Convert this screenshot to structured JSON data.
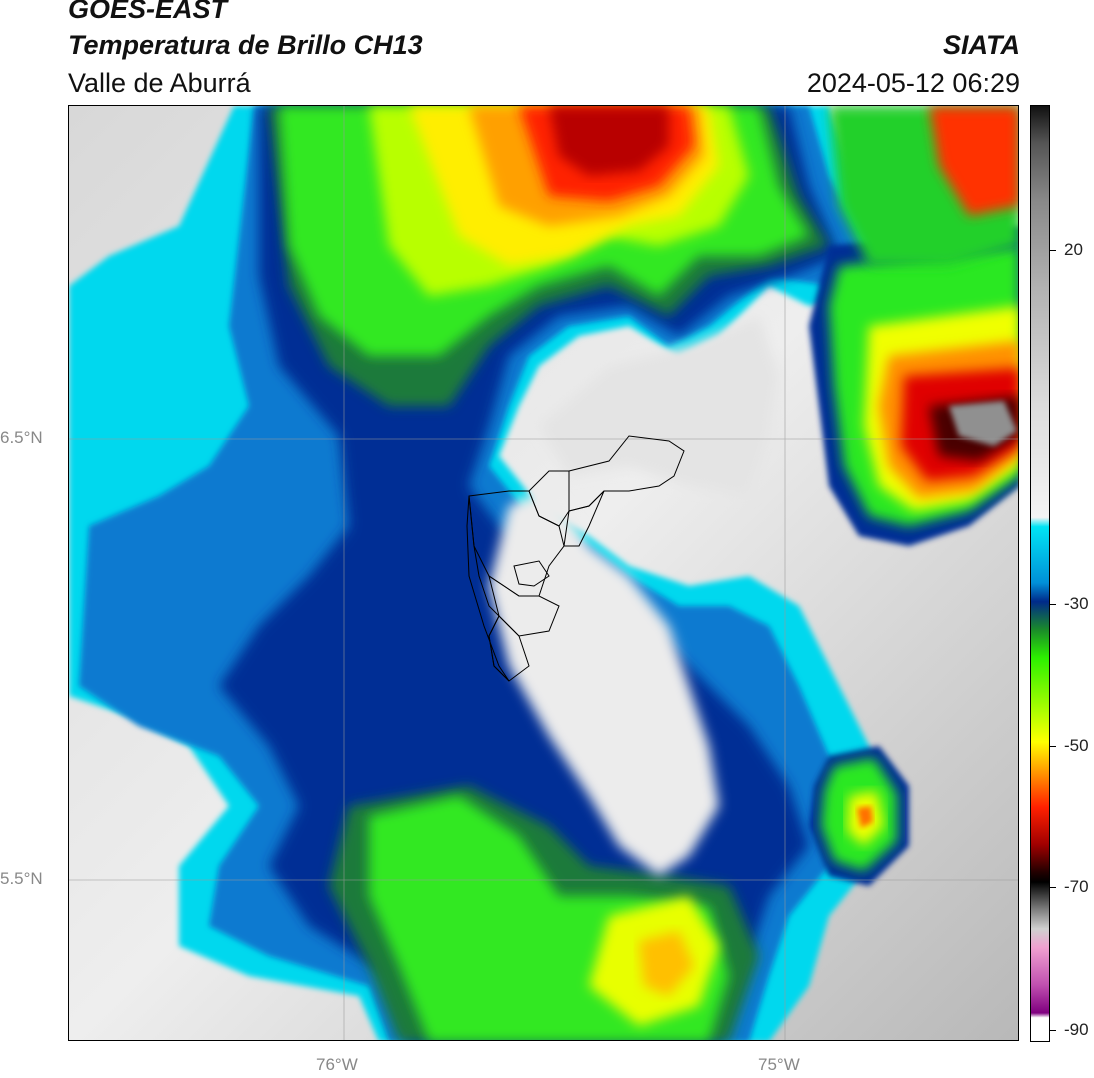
{
  "header": {
    "satellite": "GOES-EAST",
    "product": "Temperatura de Brillo CH13",
    "organization": "SIATA",
    "region": "Valle de Aburrá",
    "timestamp": "2024-05-12 06:29"
  },
  "axes": {
    "lat_ticks": [
      {
        "label": "6.5°N",
        "value": 6.5
      },
      {
        "label": "5.5°N",
        "value": 5.5
      }
    ],
    "lon_ticks": [
      {
        "label": "76°W",
        "value": -76
      },
      {
        "label": "75°W",
        "value": -75
      }
    ]
  },
  "colorbar": {
    "units": "",
    "ticks": [
      {
        "label": "20",
        "value": 20
      },
      {
        "label": "-30",
        "value": -30
      },
      {
        "label": "-50",
        "value": -50
      },
      {
        "label": "-70",
        "value": -70
      },
      {
        "label": "-90",
        "value": -90
      }
    ],
    "colors": [
      "#000000",
      "#b0b0b0",
      "#f4f4f4",
      "#00e0f0",
      "#0060c0",
      "#002a8a",
      "#1a8a2a",
      "#2cf000",
      "#b4ff00",
      "#ffff00",
      "#ffa000",
      "#ff2000",
      "#c00000",
      "#3a0000",
      "#000000",
      "#b0b0b0",
      "#f0a0d0",
      "#a030a0",
      "#ffffff"
    ]
  }
}
